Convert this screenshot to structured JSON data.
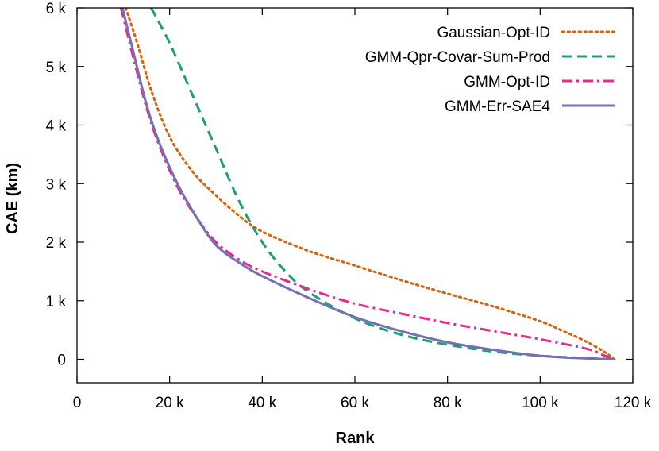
{
  "chart_data": {
    "type": "line",
    "xlabel": "Rank",
    "ylabel": "CAE (km)",
    "xlim": [
      0,
      120000
    ],
    "ylim": [
      -400,
      6000
    ],
    "xticks": [
      {
        "value": 0,
        "label": "0"
      },
      {
        "value": 20000,
        "label": "20 k"
      },
      {
        "value": 40000,
        "label": "40 k"
      },
      {
        "value": 60000,
        "label": "60 k"
      },
      {
        "value": 80000,
        "label": "80 k"
      },
      {
        "value": 100000,
        "label": "100 k"
      },
      {
        "value": 120000,
        "label": "120 k"
      }
    ],
    "yticks": [
      {
        "value": 0,
        "label": "0"
      },
      {
        "value": 1000,
        "label": "1 k"
      },
      {
        "value": 2000,
        "label": "2 k"
      },
      {
        "value": 3000,
        "label": "3 k"
      },
      {
        "value": 4000,
        "label": "4 k"
      },
      {
        "value": 5000,
        "label": "5 k"
      },
      {
        "value": 6000,
        "label": "6 k"
      }
    ],
    "grid": false,
    "legend_position": "top-right",
    "series": [
      {
        "name": "Gaussian-Opt-ID",
        "color": "#d3640f",
        "style": "dotted",
        "x": [
          10500,
          13000,
          16000,
          20000,
          25000,
          30000,
          35000,
          40000,
          50000,
          60000,
          70000,
          80000,
          90000,
          100000,
          105000,
          110000,
          114000,
          116000
        ],
        "y": [
          6000,
          5400,
          4600,
          3800,
          3200,
          2800,
          2450,
          2180,
          1850,
          1600,
          1350,
          1120,
          900,
          650,
          480,
          300,
          120,
          0
        ]
      },
      {
        "name": "GMM-Qpr-Covar-Sum-Prod",
        "color": "#1f9e76",
        "style": "dashed",
        "x": [
          16000,
          20000,
          25000,
          30000,
          35000,
          40000,
          45000,
          50000,
          60000,
          70000,
          80000,
          90000,
          100000,
          110000,
          116000
        ],
        "y": [
          6000,
          5400,
          4500,
          3600,
          2700,
          2000,
          1500,
          1150,
          700,
          420,
          250,
          130,
          60,
          20,
          0
        ]
      },
      {
        "name": "GMM-Opt-ID",
        "color": "#e7298a",
        "style": "dashdot",
        "x": [
          9500,
          12000,
          15000,
          18000,
          22000,
          26000,
          30000,
          35000,
          40000,
          50000,
          60000,
          70000,
          80000,
          90000,
          100000,
          110000,
          114000,
          116000
        ],
        "y": [
          6000,
          5200,
          4300,
          3600,
          2900,
          2400,
          2000,
          1700,
          1500,
          1200,
          950,
          780,
          620,
          480,
          340,
          180,
          60,
          0
        ]
      },
      {
        "name": "GMM-Err-SAE4",
        "color": "#7570b3",
        "style": "solid",
        "x": [
          9800,
          12000,
          15000,
          18000,
          22000,
          26000,
          30000,
          35000,
          40000,
          50000,
          60000,
          70000,
          80000,
          90000,
          100000,
          110000,
          116000
        ],
        "y": [
          6000,
          5300,
          4350,
          3650,
          2950,
          2400,
          1950,
          1650,
          1420,
          1050,
          720,
          480,
          290,
          160,
          60,
          15,
          0
        ]
      }
    ]
  }
}
